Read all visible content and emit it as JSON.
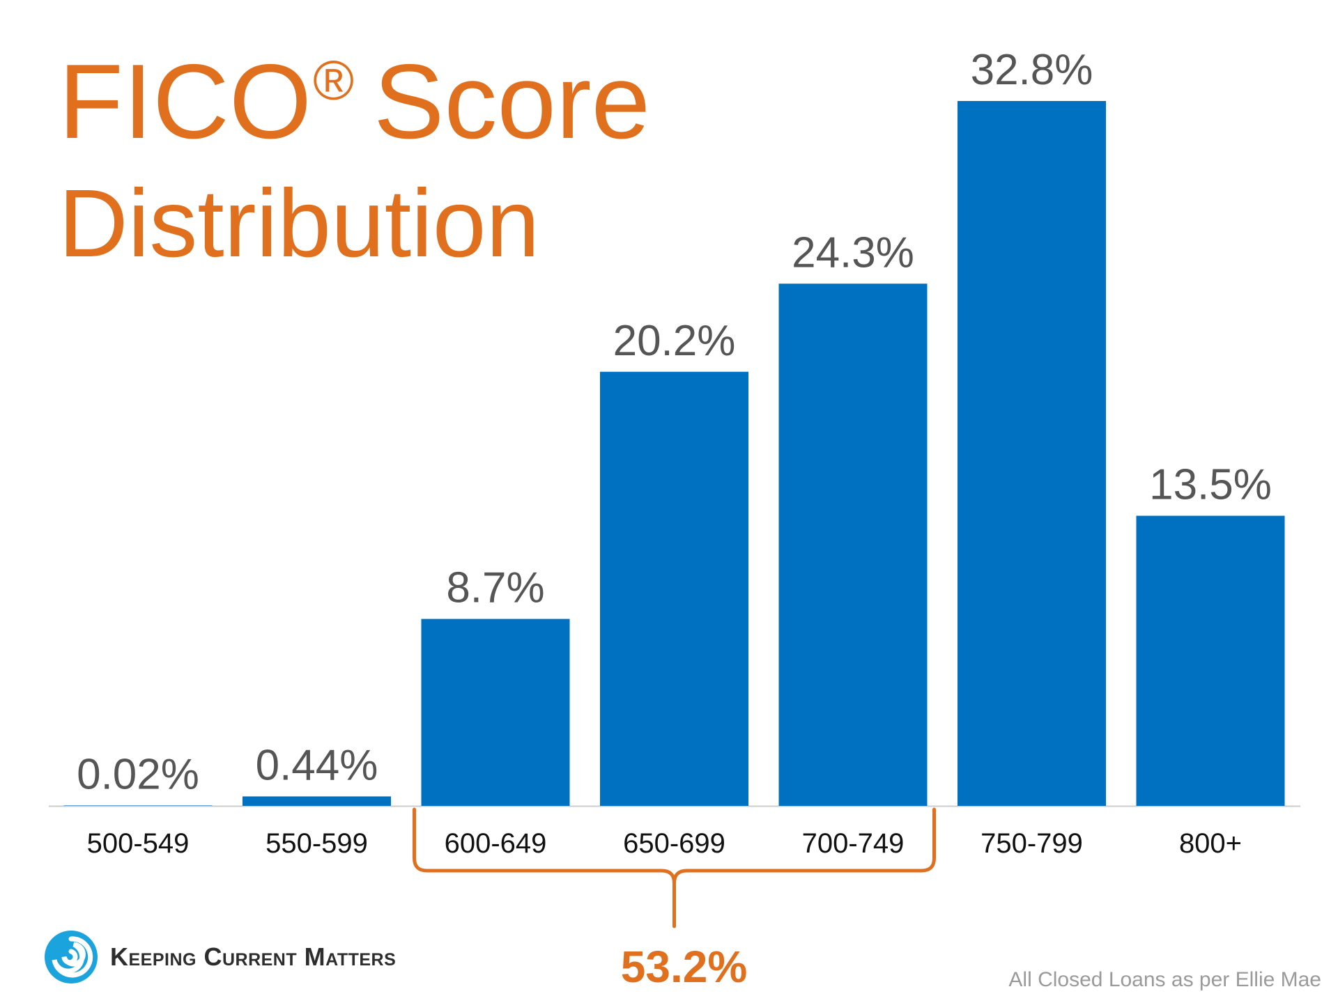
{
  "title": {
    "line1_main": "FICO",
    "line1_mark": "®",
    "line1_end": "Score",
    "line2": "Distribution"
  },
  "chart_data": {
    "type": "bar",
    "categories": [
      "500-549",
      "550-599",
      "600-649",
      "650-699",
      "700-749",
      "750-799",
      "800+"
    ],
    "values": [
      0.02,
      0.44,
      8.7,
      20.2,
      24.3,
      32.8,
      13.5
    ],
    "data_labels": [
      "0.02%",
      "0.44%",
      "8.7%",
      "20.2%",
      "24.3%",
      "32.8%",
      "13.5%"
    ],
    "ylim": [
      0,
      32.8
    ],
    "grid": false,
    "legend": "none",
    "bracket": {
      "covers": [
        "600-649",
        "650-699",
        "700-749"
      ],
      "label": "53.2%"
    }
  },
  "colors": {
    "bar": "#0070C0",
    "accent": "#E0701E",
    "label": "#555555",
    "tick": "#111111",
    "axis": "#cccccc"
  },
  "logo": {
    "icon": "swirl-icon",
    "text": "Keeping Current Matters"
  },
  "source": "All Closed Loans as per Ellie Mae"
}
